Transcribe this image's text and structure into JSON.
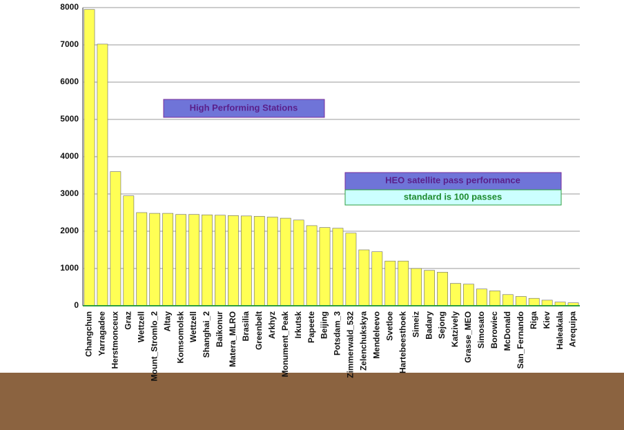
{
  "chart_data": {
    "type": "bar",
    "categories": [
      "Changchun",
      "Yarragadee",
      "Herstmonceux",
      "Graz",
      "Wettzell",
      "Mount_Stromlo_2",
      "Altay",
      "Komsomolsk",
      "Wettzell",
      "Shanghai_2",
      "Baikonur",
      "Matera_MLRO",
      "Brasilia",
      "Greenbelt",
      "Arkhyz",
      "Monument_Peak",
      "Irkutsk",
      "Papeete",
      "Beijing",
      "Potsdam_3",
      "Zimmerwald_532",
      "Zelenchukskya",
      "Mendeleevo",
      "Svetloe",
      "Hartebeesthoek",
      "Simeiz",
      "Badary",
      "Sejong",
      "Katzively",
      "Grasse_MEO",
      "Simosato",
      "Borowiec",
      "McDonald",
      "San_Fernando",
      "Riga",
      "Kiev",
      "Haleakala",
      "Arequipa"
    ],
    "values": [
      7950,
      7020,
      3600,
      2950,
      2500,
      2480,
      2480,
      2450,
      2450,
      2440,
      2430,
      2420,
      2410,
      2400,
      2380,
      2350,
      2300,
      2150,
      2100,
      2080,
      1950,
      1500,
      1450,
      1200,
      1200,
      1000,
      950,
      900,
      600,
      580,
      450,
      400,
      300,
      250,
      200,
      150,
      100,
      80
    ],
    "color": "#ffff55",
    "ylim": [
      0,
      8000
    ],
    "yticks": [
      0,
      1000,
      2000,
      3000,
      4000,
      5000,
      6000,
      7000,
      8000
    ],
    "grid": true,
    "annotations": [
      "High Performing Stations",
      "HEO satellite pass performance",
      "standard is 100 passes"
    ]
  }
}
